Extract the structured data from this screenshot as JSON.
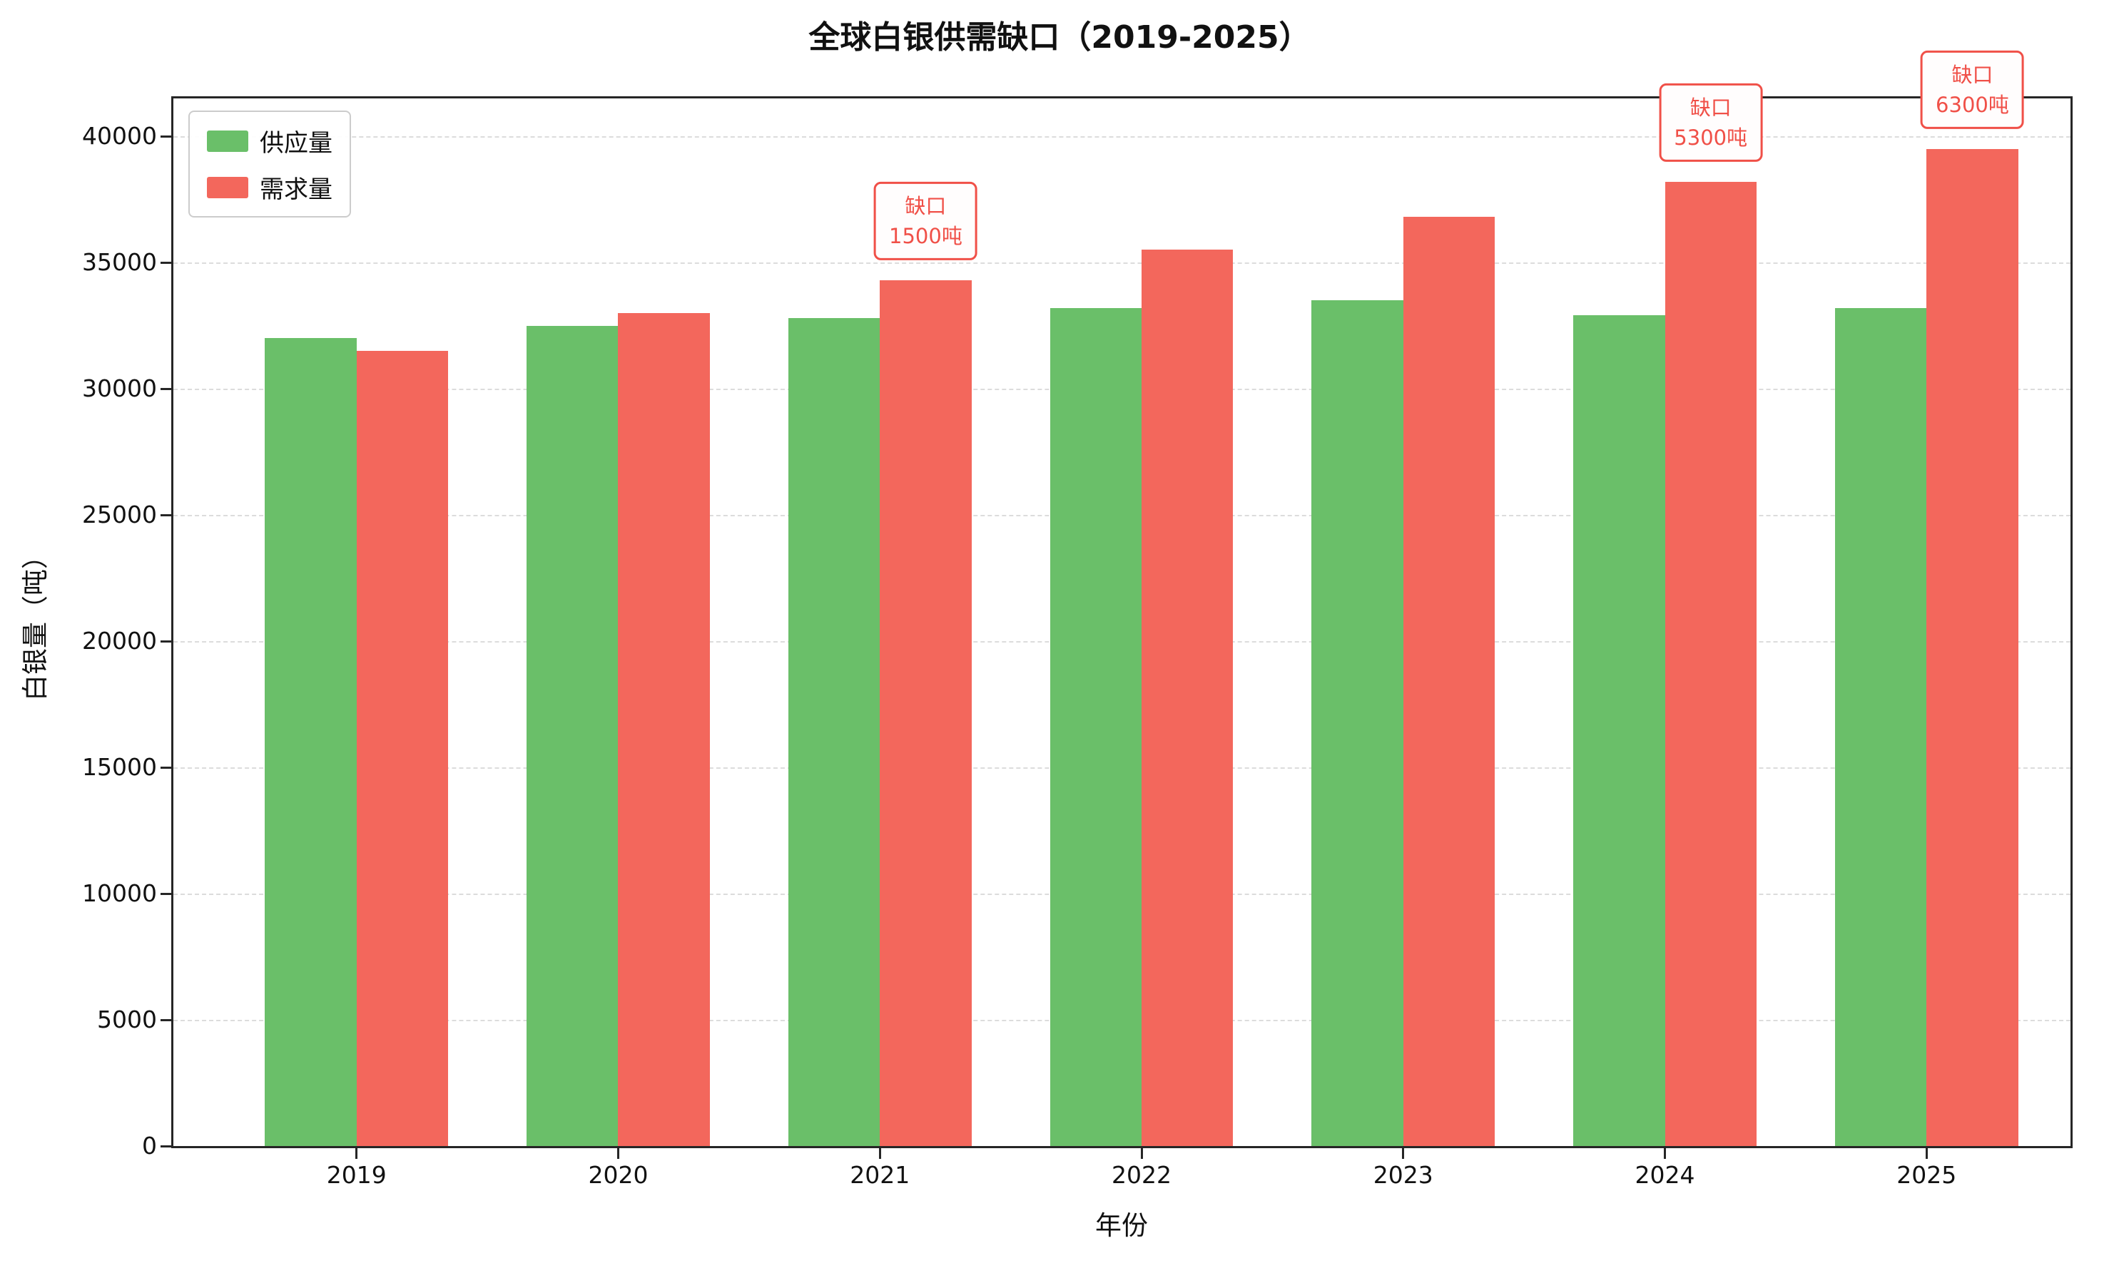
{
  "chart_data": {
    "type": "bar",
    "title": "全球白银供需缺口（2019-2025）",
    "xlabel": "年份",
    "ylabel": "白银量（吨）",
    "categories": [
      "2019",
      "2020",
      "2021",
      "2022",
      "2023",
      "2024",
      "2025"
    ],
    "series": [
      {
        "name": "供应量",
        "color": "#6abf69",
        "values": [
          32000,
          32500,
          32800,
          33200,
          33500,
          32900,
          33200
        ]
      },
      {
        "name": "需求量",
        "color": "#f3675c",
        "values": [
          31500,
          33000,
          34300,
          35500,
          36800,
          38200,
          39500
        ]
      }
    ],
    "yticks": [
      0,
      5000,
      10000,
      15000,
      20000,
      25000,
      30000,
      35000,
      40000
    ],
    "ylim": [
      0,
      41500
    ],
    "grid": true,
    "grid_style": "dashed",
    "legend_position": "upper left",
    "annotations": [
      {
        "category": "2021",
        "series": "需求量",
        "lines": [
          "缺口",
          "1500吨"
        ]
      },
      {
        "category": "2024",
        "series": "需求量",
        "lines": [
          "缺口",
          "5300吨"
        ]
      },
      {
        "category": "2025",
        "series": "需求量",
        "lines": [
          "缺口",
          "6300吨"
        ]
      }
    ],
    "annotation_color": "#f05048",
    "colors": {
      "supply": "#6abf69",
      "demand": "#f3675c",
      "grid": "#dcdcdc",
      "spine": "#262626",
      "text": "#111111"
    }
  }
}
